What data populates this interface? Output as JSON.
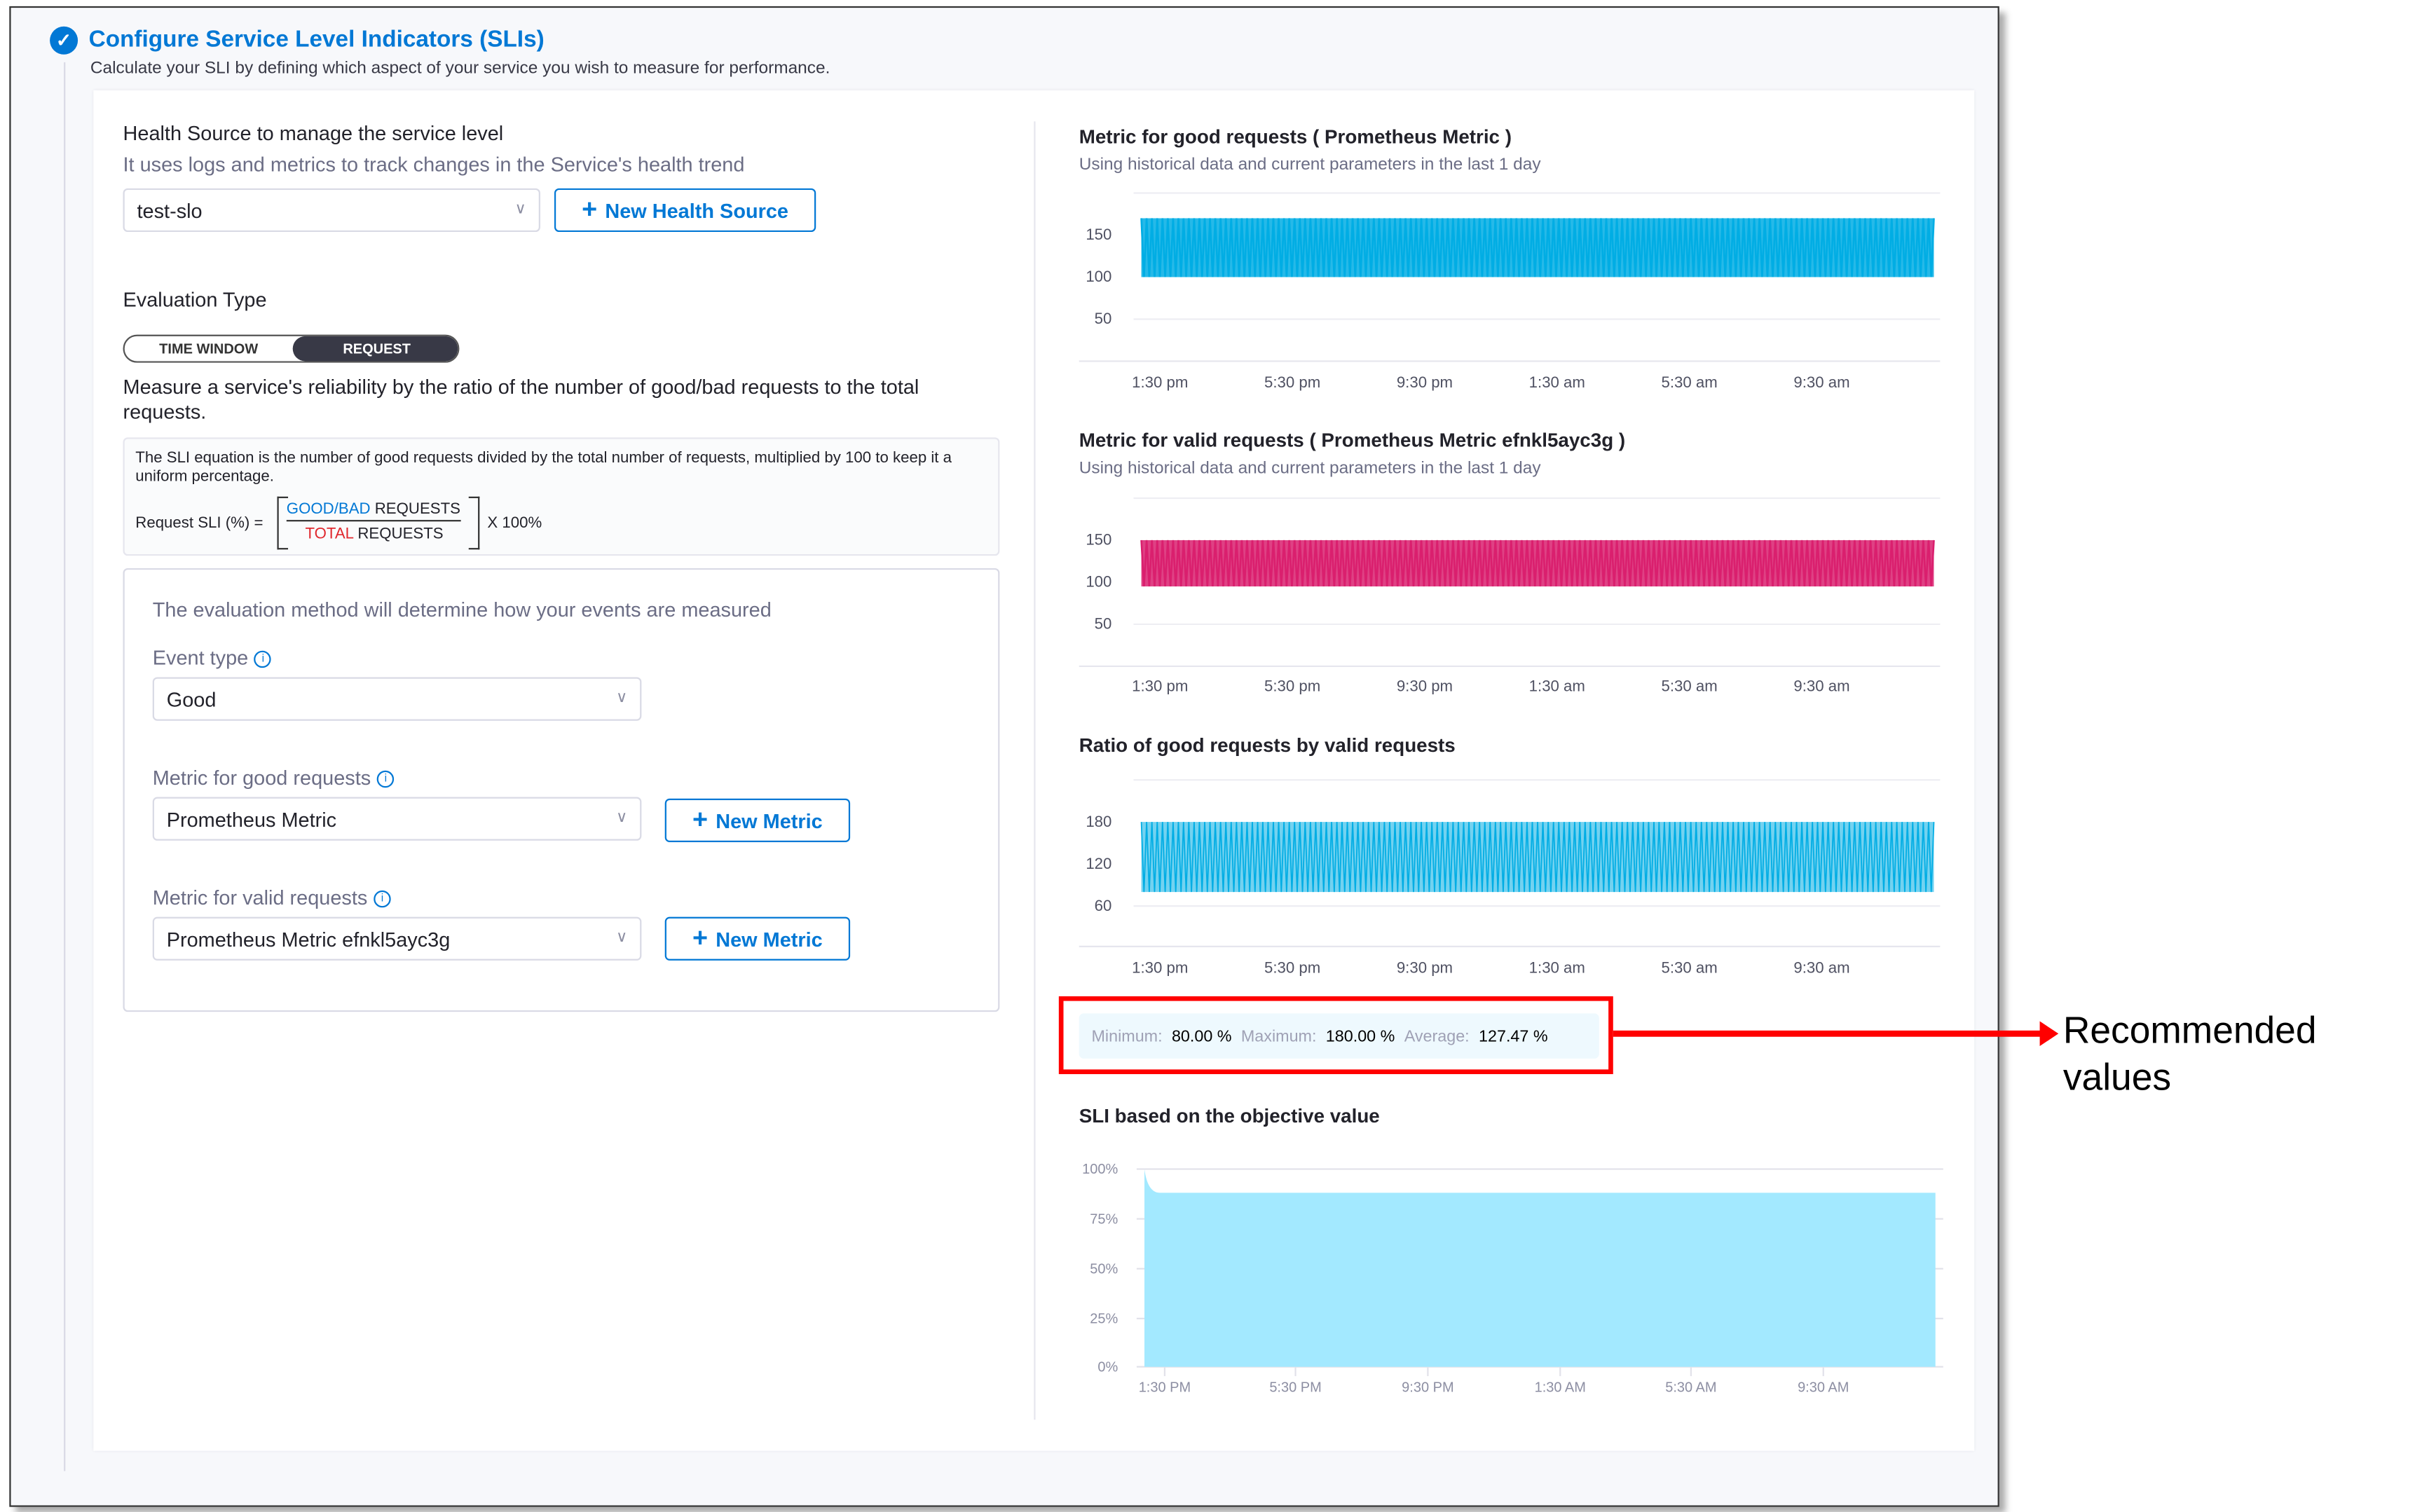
{
  "header": {
    "title": "Configure Service Level Indicators (SLIs)",
    "subtitle": "Calculate your SLI by defining which aspect of your service you wish to measure for performance."
  },
  "health_source": {
    "title": "Health Source to manage the service level",
    "subtitle": "It uses logs and metrics to track changes in the Service's health trend",
    "selected": "test-slo",
    "new_button": "New Health Source"
  },
  "evaluation": {
    "title": "Evaluation Type",
    "options": [
      "TIME WINDOW",
      "REQUEST"
    ],
    "selected": "REQUEST",
    "description": "Measure a service's reliability by the ratio of the number of good/bad requests to the total requests."
  },
  "equation": {
    "text": "The SLI equation is the number of good requests divided by the total number of requests, multiplied by 100 to keep it a uniform percentage.",
    "lhs": "Request SLI (%) =",
    "num_a": "GOOD/BAD",
    "num_b": " REQUESTS",
    "den_a": "TOTAL",
    "den_b": " REQUESTS",
    "mult": "X 100%"
  },
  "method": {
    "intro": "The evaluation method will determine how your events are measured",
    "event_type_label": "Event type",
    "event_type": "Good",
    "good_label": "Metric for good requests",
    "good_value": "Prometheus Metric",
    "valid_label": "Metric for valid requests",
    "valid_value": "Prometheus Metric efnkl5ayc3g",
    "new_metric": "New Metric"
  },
  "colors": {
    "accent": "#0278d5",
    "good_series": "#00ade4",
    "valid_series": "#d9206e",
    "sli_fill": "#a3e9ff",
    "highlight": "#ff0000"
  },
  "summary": {
    "min_label": "Minimum:",
    "min": "80.00 %",
    "max_label": "Maximum:",
    "max": "180.00 %",
    "avg_label": "Average:",
    "avg": "127.47 %"
  },
  "annotation": "Recommended values",
  "chart_data": [
    {
      "type": "area",
      "title": "Metric for good requests ( Prometheus Metric )",
      "subtitle": "Using historical data and current parameters in the last 1 day",
      "x_ticks": [
        "1:30 pm",
        "5:30 pm",
        "9:30 pm",
        "1:30 am",
        "5:30 am",
        "9:30 am"
      ],
      "y_ticks": [
        50,
        100,
        150
      ],
      "ylim": [
        25,
        175
      ],
      "range_observed": [
        100,
        170
      ]
    },
    {
      "type": "area",
      "title": "Metric for valid requests ( Prometheus Metric efnkl5ayc3g )",
      "subtitle": "Using historical data and current parameters in the last 1 day",
      "x_ticks": [
        "1:30 pm",
        "5:30 pm",
        "9:30 pm",
        "1:30 am",
        "5:30 am",
        "9:30 am"
      ],
      "y_ticks": [
        50,
        100,
        150
      ],
      "ylim": [
        25,
        175
      ],
      "range_observed": [
        95,
        150
      ]
    },
    {
      "type": "line",
      "title": "Ratio of good requests by valid requests",
      "x_ticks": [
        "1:30 pm",
        "5:30 pm",
        "9:30 pm",
        "1:30 am",
        "5:30 am",
        "9:30 am"
      ],
      "y_ticks": [
        60,
        120,
        180
      ],
      "ylim": [
        0,
        240
      ],
      "range_observed": [
        80,
        180
      ]
    },
    {
      "type": "area",
      "title": "SLI based on the objective value",
      "x_ticks": [
        "1:30 PM",
        "5:30 PM",
        "9:30 PM",
        "1:30 AM",
        "5:30 AM",
        "9:30 AM"
      ],
      "y_ticks": [
        "0%",
        "25%",
        "50%",
        "75%",
        "100%"
      ],
      "ylim": [
        0,
        100
      ],
      "start_value": 100,
      "steady_value": 88
    }
  ]
}
